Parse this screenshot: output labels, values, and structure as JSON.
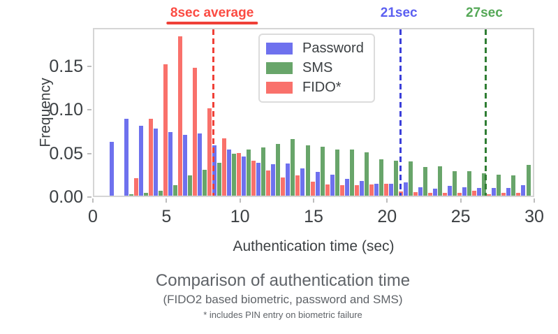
{
  "chart_data": {
    "type": "bar",
    "variant": "grouped-histogram",
    "title": "Comparison of authentication time",
    "subtitle": "(FIDO2 based biometric, password and SMS)",
    "footnote": "* includes PIN entry on biometric failure",
    "xlabel": "Authentication time (sec)",
    "ylabel": "Frequency",
    "xlim": [
      0,
      30
    ],
    "ylim": [
      0,
      0.194
    ],
    "grid": false,
    "legend_position": "upper-left-inside",
    "x_ticks": [
      {
        "label": "0",
        "value": 0
      },
      {
        "label": "5",
        "value": 5
      },
      {
        "label": "10",
        "value": 10
      },
      {
        "label": "15",
        "value": 15
      },
      {
        "label": "20",
        "value": 20
      },
      {
        "label": "25",
        "value": 25
      },
      {
        "label": "30",
        "value": 30
      }
    ],
    "y_ticks": [
      {
        "label": "0.00",
        "value": 0.0
      },
      {
        "label": "0.05",
        "value": 0.05
      },
      {
        "label": "0.10",
        "value": 0.1
      },
      {
        "label": "0.15",
        "value": 0.15
      }
    ],
    "bin_start_sec": 1,
    "bin_width_sec": 1,
    "categories": [
      1,
      2,
      3,
      4,
      5,
      6,
      7,
      8,
      9,
      10,
      11,
      12,
      13,
      14,
      15,
      16,
      17,
      18,
      19,
      20,
      21,
      22,
      23,
      24,
      25,
      26,
      27,
      28,
      29
    ],
    "series": [
      {
        "name": "Password",
        "color": "#6e71ee",
        "values": [
          0.062,
          0.088,
          0.08,
          0.077,
          0.073,
          0.07,
          0.071,
          0.058,
          0.053,
          0.045,
          0.038,
          0.036,
          0.037,
          0.031,
          0.027,
          0.024,
          0.019,
          0.017,
          0.014,
          0.014,
          0.015,
          0.01,
          0.008,
          0.011,
          0.01,
          0.009,
          0.009,
          0.009,
          0.012
        ]
      },
      {
        "name": "SMS",
        "color": "#68a56a",
        "values": [
          0.0,
          0.002,
          0.003,
          0.006,
          0.012,
          0.023,
          0.03,
          0.038,
          0.048,
          0.053,
          0.055,
          0.059,
          0.065,
          0.058,
          0.056,
          0.053,
          0.053,
          0.05,
          0.042,
          0.04,
          0.039,
          0.033,
          0.034,
          0.028,
          0.028,
          0.026,
          0.024,
          0.023,
          0.035
        ]
      },
      {
        "name": "FIDO*",
        "color": "#f9716b",
        "values": [
          0.0,
          0.02,
          0.088,
          0.151,
          0.183,
          0.147,
          0.1,
          0.066,
          0.049,
          0.04,
          0.029,
          0.021,
          0.023,
          0.016,
          0.013,
          0.012,
          0.012,
          0.013,
          0.014,
          0.005,
          0.004,
          0.003,
          0.003,
          0.003,
          0.006,
          0.002,
          0.003,
          0.003,
          0.0
        ]
      }
    ],
    "markers": [
      {
        "label": "8sec average",
        "x": 8.1,
        "line_color": "#ef4037",
        "label_color": "#fb4b42",
        "underline": true
      },
      {
        "label": "21sec",
        "x": 20.8,
        "line_color": "#3b3fd9",
        "label_color": "#5b5ff1",
        "underline": false
      },
      {
        "label": "27sec",
        "x": 26.6,
        "line_color": "#2f7d33",
        "label_color": "#55a857",
        "underline": false
      }
    ]
  },
  "colors": {
    "plot_border": "#d5d5d5",
    "tick_text": "#3c4043",
    "caption_text": "#5f6368",
    "background": "#ffffff"
  }
}
